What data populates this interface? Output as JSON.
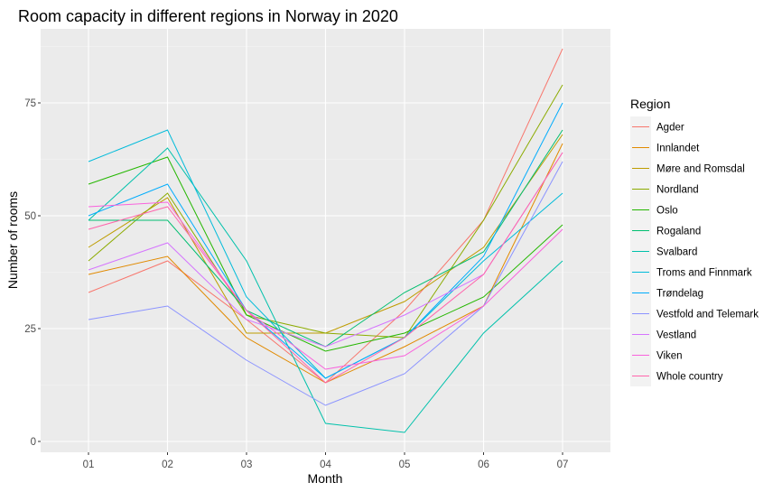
{
  "chart_data": {
    "type": "line",
    "title": "Room capacity in different regions in Norway in 2020",
    "xlabel": "Month",
    "ylabel": "Number of rooms",
    "categories": [
      "01",
      "02",
      "03",
      "04",
      "05",
      "06",
      "07"
    ],
    "ylim": [
      -3,
      90
    ],
    "yticks": [
      0,
      25,
      50,
      75
    ],
    "grid": true,
    "legend": {
      "title": "Region",
      "position": "right"
    },
    "series": [
      {
        "name": "Agder",
        "color": "#F8766D",
        "values": [
          33,
          40,
          27,
          13,
          29,
          49,
          87
        ]
      },
      {
        "name": "Innlandet",
        "color": "#E18A00",
        "values": [
          37,
          41,
          23,
          13,
          21,
          30,
          66
        ]
      },
      {
        "name": "Møre and Romsdal",
        "color": "#BE9C00",
        "values": [
          43,
          54,
          24,
          24,
          31,
          43,
          68
        ]
      },
      {
        "name": "Nordland",
        "color": "#8CAB00",
        "values": [
          40,
          55,
          28,
          24,
          23,
          49,
          79
        ]
      },
      {
        "name": "Oslo",
        "color": "#24B700",
        "values": [
          57,
          63,
          28,
          20,
          24,
          32,
          48
        ]
      },
      {
        "name": "Rogaland",
        "color": "#00BE70",
        "values": [
          49,
          49,
          29,
          21,
          33,
          42,
          69
        ]
      },
      {
        "name": "Svalbard",
        "color": "#00C1AB",
        "values": [
          49,
          65,
          40,
          4,
          2,
          24,
          40
        ]
      },
      {
        "name": "Troms and Finnmark",
        "color": "#00BBDA",
        "values": [
          62,
          69,
          32,
          14,
          23,
          40,
          55
        ]
      },
      {
        "name": "Trøndelag",
        "color": "#00ACFC",
        "values": [
          50,
          57,
          29,
          14,
          23,
          41,
          75
        ]
      },
      {
        "name": "Vestfold and Telemark",
        "color": "#8B93FF",
        "values": [
          27,
          30,
          18,
          8,
          15,
          30,
          62
        ]
      },
      {
        "name": "Vestland",
        "color": "#D575FE",
        "values": [
          38,
          44,
          27,
          21,
          28,
          37,
          64
        ]
      },
      {
        "name": "Viken",
        "color": "#F962DD",
        "values": [
          52,
          53,
          29,
          16,
          19,
          30,
          47
        ]
      },
      {
        "name": "Whole country",
        "color": "#FF65AC",
        "values": [
          47,
          52,
          29,
          13,
          23,
          37,
          64
        ]
      }
    ]
  }
}
